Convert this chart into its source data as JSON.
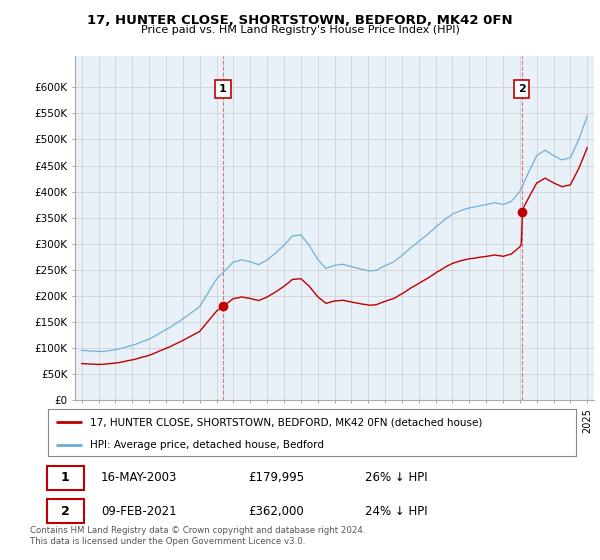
{
  "title": "17, HUNTER CLOSE, SHORTSTOWN, BEDFORD, MK42 0FN",
  "subtitle": "Price paid vs. HM Land Registry's House Price Index (HPI)",
  "legend_line1": "17, HUNTER CLOSE, SHORTSTOWN, BEDFORD, MK42 0FN (detached house)",
  "legend_line2": "HPI: Average price, detached house, Bedford",
  "annotation1_date": "16-MAY-2003",
  "annotation1_price": "£179,995",
  "annotation1_hpi": "26% ↓ HPI",
  "annotation2_date": "09-FEB-2021",
  "annotation2_price": "£362,000",
  "annotation2_hpi": "24% ↓ HPI",
  "footer": "Contains HM Land Registry data © Crown copyright and database right 2024.\nThis data is licensed under the Open Government Licence v3.0.",
  "hpi_color": "#6baed6",
  "sale_color": "#c00000",
  "vline_color": "#e06060",
  "grid_color": "#cccccc",
  "chart_bg": "#e8f0f8",
  "background_color": "#ffffff",
  "ylim": [
    0,
    660000
  ],
  "ytick_values": [
    0,
    50000,
    100000,
    150000,
    200000,
    250000,
    300000,
    350000,
    400000,
    450000,
    500000,
    550000,
    600000
  ],
  "ytick_labels": [
    "£0",
    "£50K",
    "£100K",
    "£150K",
    "£200K",
    "£250K",
    "£300K",
    "£350K",
    "£400K",
    "£450K",
    "£500K",
    "£550K",
    "£600K"
  ],
  "xlim_start": 1994.6,
  "xlim_end": 2025.4,
  "sale1_year": 2003.37,
  "sale1_price": 179995,
  "sale2_year": 2021.1,
  "sale2_price": 362000
}
